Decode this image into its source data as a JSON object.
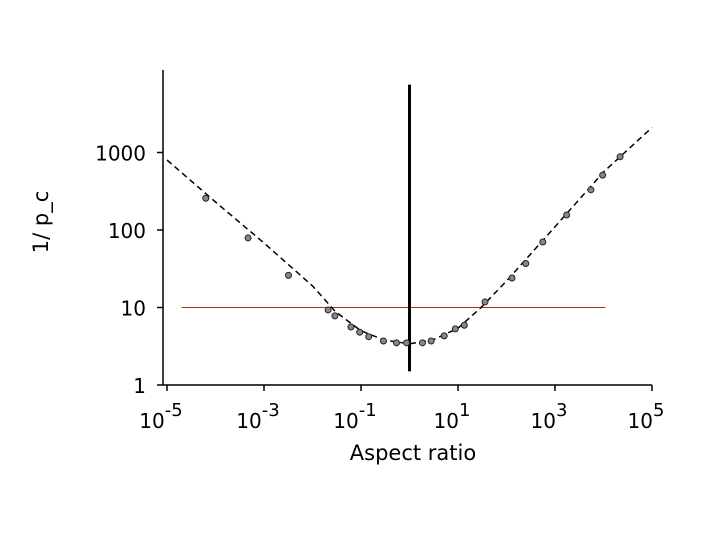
{
  "chart_data": {
    "type": "scatter",
    "x_label": "Aspect ratio",
    "y_label": "1/ p_c",
    "x_scale": "log",
    "y_scale": "log",
    "xlim": [
      1e-05,
      100000
    ],
    "ylim": [
      1,
      10000
    ],
    "xticks": [
      {
        "value": 1e-05,
        "label": "10",
        "exponent": "-5"
      },
      {
        "value": 0.001,
        "label": "10",
        "exponent": "-3"
      },
      {
        "value": 0.1,
        "label": "10",
        "exponent": "-1"
      },
      {
        "value": 10,
        "label": "10",
        "exponent": "1"
      },
      {
        "value": 1000,
        "label": "10",
        "exponent": "3"
      },
      {
        "value": 100000,
        "label": "10",
        "exponent": "5"
      }
    ],
    "yticks": [
      1,
      10,
      100,
      1000
    ],
    "series": [
      {
        "color": "#888888",
        "x": [
          6.3e-05,
          0.00047,
          0.0032,
          0.021,
          0.029,
          0.062,
          0.094,
          0.144,
          0.29,
          0.54,
          0.87,
          1.85,
          2.8,
          5.2,
          8.8,
          13.5,
          36,
          130,
          250,
          560,
          1740,
          5500,
          9600,
          22000
        ],
        "values": [
          257,
          79,
          26,
          9.3,
          7.8,
          5.6,
          4.8,
          4.2,
          3.7,
          3.5,
          3.5,
          3.5,
          3.7,
          4.3,
          5.3,
          5.9,
          11.8,
          24,
          37,
          70,
          156,
          330,
          510,
          880
        ]
      }
    ],
    "fit_line": {
      "color": "#000000",
      "x": [
        1e-05,
        0.0001,
        0.001,
        0.01,
        0.03,
        0.1,
        0.3,
        1,
        3,
        10,
        30,
        100,
        1000,
        10000,
        100000
      ],
      "values": [
        800,
        230,
        68,
        19,
        8.8,
        5,
        3.8,
        3.4,
        3.8,
        5.4,
        10,
        22,
        110,
        560,
        2100
      ]
    },
    "reference_line": {
      "color": "#b03020",
      "y": 10,
      "x": [
        2e-05,
        11000
      ]
    },
    "vertical_line": {
      "color": "#000000",
      "x": 1,
      "y": [
        1.5,
        7500
      ]
    }
  }
}
